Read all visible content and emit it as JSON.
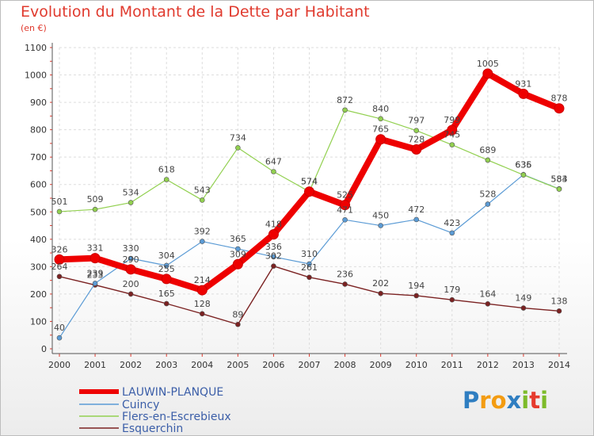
{
  "header": {
    "title": "Evolution du Montant de la Dette par Habitant",
    "unit": "(en €)"
  },
  "logo": {
    "text": "Proxiti",
    "letters": [
      "P",
      "r",
      "o",
      "x",
      "i",
      "t",
      "i"
    ],
    "colors": [
      "#2f7ec1",
      "#f39c12",
      "#f39c12",
      "#2f7ec1",
      "#7dbb2a",
      "#e63b2e",
      "#7dbb2a"
    ]
  },
  "chart_data": {
    "type": "line",
    "title": "Evolution du Montant de la Dette par Habitant",
    "ylabel": "(en €)",
    "xlabel": "",
    "x": [
      "2000",
      "2001",
      "2002",
      "2003",
      "2004",
      "2005",
      "2006",
      "2007",
      "2008",
      "2009",
      "2010",
      "2011",
      "2012",
      "2013",
      "2014"
    ],
    "ylim": [
      0,
      1100
    ],
    "yticks": [
      0,
      100,
      200,
      300,
      400,
      500,
      600,
      700,
      800,
      900,
      1000,
      1100
    ],
    "grid": true,
    "legend_position": "bottom-left",
    "series": [
      {
        "name": "LAUWIN-PLANQUE",
        "color": "#ee0000",
        "values": [
          326,
          331,
          290,
          255,
          214,
          309,
          418,
          574,
          525,
          765,
          728,
          799,
          1005,
          931,
          878
        ]
      },
      {
        "name": "Cuincy",
        "color": "#5b9bd5",
        "values": [
          40,
          239,
          330,
          304,
          392,
          365,
          336,
          310,
          471,
          450,
          472,
          423,
          528,
          636,
          584
        ]
      },
      {
        "name": "Flers-en-Escrebieux",
        "color": "#92d050",
        "values": [
          501,
          509,
          534,
          618,
          543,
          734,
          647,
          574,
          872,
          840,
          797,
          745,
          689,
          635,
          583
        ]
      },
      {
        "name": "Esquerchin",
        "color": "#7b2222",
        "values": [
          264,
          233,
          200,
          165,
          128,
          89,
          302,
          261,
          236,
          202,
          194,
          179,
          164,
          149,
          138
        ]
      }
    ]
  }
}
